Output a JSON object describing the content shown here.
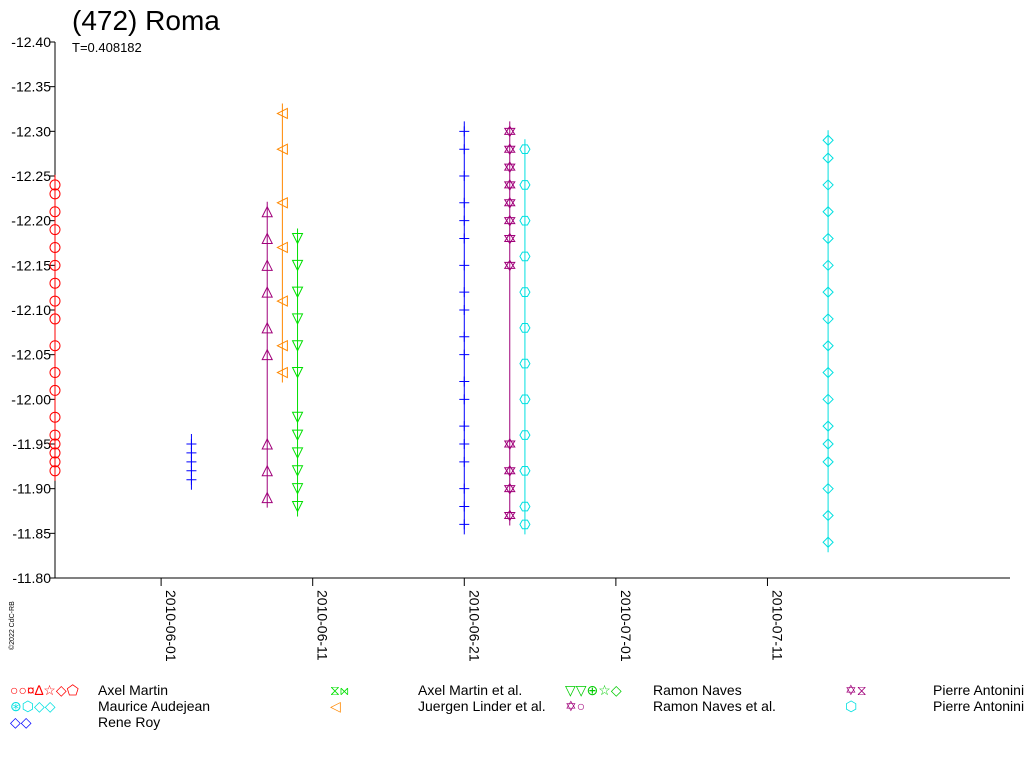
{
  "chart_data": {
    "type": "scatter",
    "title": "(472) Roma",
    "subtitle": "T=0.408182",
    "credit": "©2022 CdC-RB",
    "ylim": [
      -12.4,
      -11.8
    ],
    "y_inverted": true,
    "y_ticks": [
      "-12.40",
      "-12.35",
      "-12.30",
      "-12.25",
      "-12.20",
      "-12.15",
      "-12.10",
      "-12.05",
      "-12.00",
      "-11.95",
      "-11.90",
      "-11.85",
      "-11.80"
    ],
    "xlim": [
      "2010-05-25",
      "2010-07-27"
    ],
    "x_ticks": [
      "2010-06-01",
      "2010-06-11",
      "2010-06-21",
      "2010-07-01",
      "2010-07-11"
    ],
    "grid": false,
    "legend_placement": "bottom",
    "legend": [
      {
        "name": "Axel Martin",
        "symbols": "○○¤∆☆◇⬠",
        "color": "#ff0000"
      },
      {
        "name": "Axel Martin et al.",
        "symbols": "⧖⋈",
        "color": "#00e000"
      },
      {
        "name": "Ramon Naves",
        "symbols": "▽▽⊕☆◇",
        "color": "#00cc00"
      },
      {
        "name": "Pierre Antonini et al.",
        "symbols": "✡⧖",
        "color": "#a0007a"
      },
      {
        "name": "Maurice Audejean",
        "symbols": "⊛⬡◇◇",
        "color": "#00e0e0"
      },
      {
        "name": "Juergen Linder et al.",
        "symbols": "◁",
        "color": "#ff8800"
      },
      {
        "name": "Ramon Naves et al.",
        "symbols": "✡○",
        "color": "#a0007a"
      },
      {
        "name": "Pierre Antonini",
        "symbols": "⬡",
        "color": "#00e0e0"
      },
      {
        "name": "Rene Roy",
        "symbols": "◇◇",
        "color": "#0000ff"
      }
    ],
    "series": [
      {
        "name": "Axel Martin",
        "color": "#ff0000",
        "marker": "circle",
        "x_start": "2010-05-25",
        "x_end": "2010-05-25",
        "y_values": [
          -12.24,
          -12.23,
          -12.21,
          -12.19,
          -12.17,
          -12.15,
          -12.13,
          -12.11,
          -12.09,
          -12.06,
          -12.03,
          -12.01,
          -11.98,
          -11.96,
          -11.95,
          -11.94,
          -11.93,
          -11.92
        ]
      },
      {
        "name": "Rene Roy",
        "color": "#0000ff",
        "marker": "cross",
        "x_start": "2010-06-03",
        "x_end": "2010-06-03",
        "y_values": [
          -11.95,
          -11.94,
          -11.93,
          -11.92,
          -11.91
        ]
      },
      {
        "name": "Juergen Linder et al.",
        "color": "#ff8800",
        "marker": "triangle-left",
        "x_start": "2010-06-09",
        "x_end": "2010-06-09",
        "y_values": [
          -12.32,
          -12.28,
          -12.22,
          -12.17,
          -12.11,
          -12.06,
          -12.03
        ]
      },
      {
        "name": "Pierre Antonini et al.",
        "color": "#a0007a",
        "marker": "triangle",
        "x_start": "2010-06-08",
        "x_end": "2010-06-08",
        "y_values": [
          -12.21,
          -12.18,
          -12.15,
          -12.12,
          -12.08,
          -12.05,
          -11.95,
          -11.92,
          -11.89
        ]
      },
      {
        "name": "Axel Martin et al.",
        "color": "#00e000",
        "marker": "triangle-down",
        "x_start": "2010-06-10",
        "x_end": "2010-06-10",
        "y_values": [
          -12.18,
          -12.15,
          -12.12,
          -12.09,
          -12.06,
          -12.03,
          -11.98,
          -11.96,
          -11.94,
          -11.92,
          -11.9,
          -11.88
        ]
      },
      {
        "name": "Ramon Naves",
        "color": "#0000ff",
        "marker": "cross",
        "x_start": "2010-06-21",
        "x_end": "2010-06-21",
        "y_values": [
          -12.3,
          -12.28,
          -12.25,
          -12.22,
          -12.2,
          -12.18,
          -12.15,
          -12.12,
          -12.1,
          -12.07,
          -12.05,
          -12.02,
          -12.0,
          -11.97,
          -11.95,
          -11.93,
          -11.9,
          -11.88,
          -11.86
        ]
      },
      {
        "name": "Ramon Naves et al.",
        "color": "#a0007a",
        "marker": "star",
        "x_start": "2010-06-24",
        "x_end": "2010-06-24",
        "y_values": [
          -12.3,
          -12.28,
          -12.26,
          -12.24,
          -12.22,
          -12.2,
          -12.18,
          -12.15,
          -11.95,
          -11.92,
          -11.9,
          -11.87
        ]
      },
      {
        "name": "Maurice Audejean",
        "color": "#00e0e0",
        "marker": "diamond",
        "x_start": "2010-07-15",
        "x_end": "2010-07-15",
        "y_values": [
          -12.29,
          -12.27,
          -12.24,
          -12.21,
          -12.18,
          -12.15,
          -12.12,
          -12.09,
          -12.06,
          -12.03,
          -12.0,
          -11.97,
          -11.95,
          -11.93,
          -11.9,
          -11.87,
          -11.84
        ]
      },
      {
        "name": "Pierre Antonini",
        "color": "#00e0e0",
        "marker": "hexagon",
        "x_start": "2010-06-25",
        "x_end": "2010-06-25",
        "y_values": [
          -12.28,
          -12.24,
          -12.2,
          -12.16,
          -12.12,
          -12.08,
          -12.04,
          -12.0,
          -11.96,
          -11.92,
          -11.88,
          -11.86
        ]
      }
    ]
  }
}
